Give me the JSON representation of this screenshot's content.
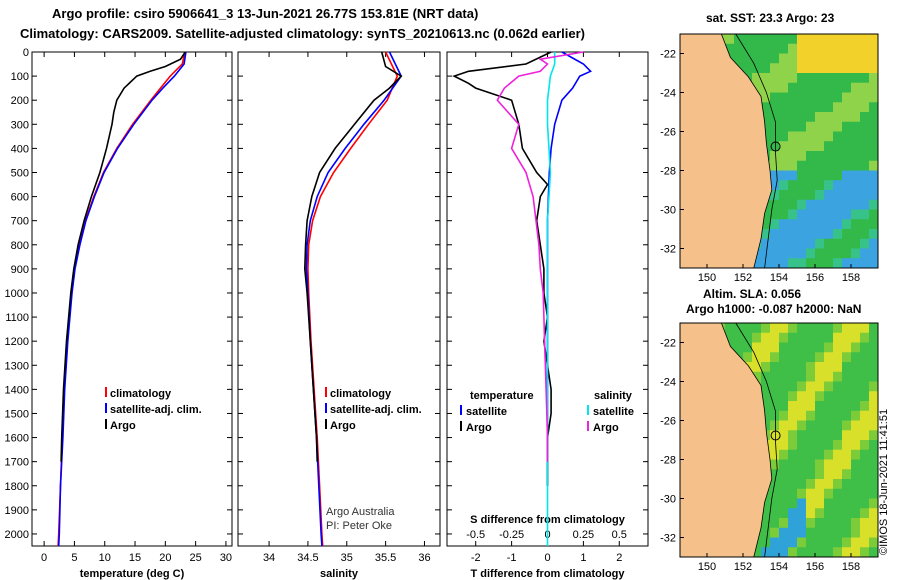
{
  "header": {
    "line1": "Argo profile: csiro 5906641_3 13-Jun-2021 26.77S 153.81E (NRT data)",
    "line2": "Climatology: CARS2009. Satellite-adjusted climatology: synTS_20210613.nc (0.062d earlier)"
  },
  "map_top_title": "sat. SST: 23.3 Argo: 23",
  "map_bottom_title_1": "Altim. SLA: 0.056",
  "map_bottom_title_2": "Argo h1000: -0.087 h2000: NaN",
  "stamp": "©IMOS 18-Jun-2021 11:41:51",
  "credit": {
    "line1": "Argo Australia",
    "line2": "PI: Peter Oke"
  },
  "colors": {
    "climatology": "#ff0000",
    "satellite": "#0000ff",
    "argo": "#000000",
    "sat_salinity": "#00e5ee",
    "argo_salinity": "#ee22dd",
    "land": "#f5c08a"
  },
  "legend_profiles": {
    "climatology": "climatology",
    "satellite": "satellite-adj. clim.",
    "argo": "Argo"
  },
  "legend_diff": {
    "temperature": "temperature",
    "salinity": "salinity",
    "satellite": "satellite",
    "argo": "Argo"
  },
  "chart_data": [
    {
      "type": "line",
      "title": "",
      "xlabel": "temperature (deg C)",
      "ylabel": "",
      "xlim": [
        -2,
        31
      ],
      "ylim": [
        2050,
        0
      ],
      "xticks": [
        "0",
        "5",
        "10",
        "15",
        "20",
        "25",
        "30"
      ],
      "yticks": [
        "0",
        "100",
        "200",
        "300",
        "400",
        "500",
        "600",
        "700",
        "800",
        "900",
        "1000",
        "1100",
        "1200",
        "1300",
        "1400",
        "1500",
        "1600",
        "1700",
        "1800",
        "1900",
        "2000"
      ],
      "series": [
        {
          "name": "climatology",
          "depth": [
            0,
            50,
            100,
            150,
            200,
            300,
            400,
            500,
            600,
            700,
            800,
            900,
            1000,
            1200,
            1400,
            1600,
            1800,
            2000,
            2050
          ],
          "values": [
            23.2,
            22.8,
            20.8,
            19.2,
            17.6,
            14.6,
            12.0,
            9.8,
            8.2,
            6.8,
            5.8,
            5.0,
            4.5,
            3.8,
            3.3,
            3.0,
            2.7,
            2.4,
            2.3
          ]
        },
        {
          "name": "satellite-adj. clim.",
          "depth": [
            0,
            50,
            100,
            150,
            200,
            300,
            400,
            500,
            600,
            700,
            800,
            900,
            1000,
            1200,
            1400,
            1600,
            1800,
            2000,
            2050
          ],
          "values": [
            23.4,
            23.1,
            21.5,
            19.6,
            17.8,
            14.8,
            12.1,
            9.9,
            8.3,
            6.9,
            5.9,
            5.1,
            4.6,
            3.9,
            3.4,
            3.1,
            2.7,
            2.5,
            2.4
          ]
        },
        {
          "name": "Argo",
          "depth": [
            0,
            30,
            60,
            80,
            100,
            150,
            200,
            250,
            300,
            400,
            500,
            600,
            700,
            800,
            900,
            1000,
            1200,
            1400,
            1600,
            1700
          ],
          "values": [
            23.3,
            22.5,
            20.0,
            17.5,
            15.3,
            13.2,
            12.0,
            11.5,
            11.2,
            10.3,
            9.2,
            7.8,
            6.6,
            5.6,
            4.9,
            4.4,
            3.7,
            3.2,
            2.9,
            2.8
          ]
        }
      ]
    },
    {
      "type": "line",
      "title": "",
      "xlabel": "salinity",
      "ylabel": "",
      "xlim": [
        33.6,
        36.2
      ],
      "ylim": [
        2050,
        0
      ],
      "xticks": [
        "34",
        "34.5",
        "35",
        "35.5",
        "36"
      ],
      "series": [
        {
          "name": "climatology",
          "depth": [
            0,
            100,
            200,
            300,
            400,
            500,
            600,
            700,
            800,
            900,
            1000,
            1200,
            1400,
            1600,
            1800,
            2000,
            2050
          ],
          "values": [
            35.5,
            35.65,
            35.52,
            35.28,
            35.05,
            34.83,
            34.66,
            34.56,
            34.51,
            34.5,
            34.51,
            34.54,
            34.58,
            34.62,
            34.65,
            34.68,
            34.69
          ]
        },
        {
          "name": "satellite-adj. clim.",
          "depth": [
            0,
            100,
            200,
            300,
            400,
            500,
            600,
            700,
            800,
            900,
            1000,
            1200,
            1400,
            1600,
            1800,
            2000,
            2050
          ],
          "values": [
            35.55,
            35.7,
            35.48,
            35.22,
            34.98,
            34.76,
            34.62,
            34.53,
            34.49,
            34.48,
            34.5,
            34.53,
            34.57,
            34.61,
            34.64,
            34.67,
            34.68
          ]
        },
        {
          "name": "Argo",
          "depth": [
            0,
            60,
            100,
            150,
            200,
            300,
            400,
            500,
            600,
            700,
            800,
            900,
            1000,
            1200,
            1400,
            1600,
            1700
          ],
          "values": [
            35.45,
            35.5,
            35.7,
            35.55,
            35.35,
            35.1,
            34.85,
            34.65,
            34.55,
            34.49,
            34.47,
            34.46,
            34.49,
            34.53,
            34.57,
            34.61,
            34.62
          ]
        }
      ]
    },
    {
      "type": "line",
      "title": "",
      "xlabel": "T difference from climatology",
      "xlabel2": "S difference from climatology",
      "ylabel": "",
      "xlim": [
        -2.8,
        2.8
      ],
      "ylim": [
        2050,
        0
      ],
      "xticks": [
        "-2",
        "-1",
        "0",
        "1",
        "2"
      ],
      "xticks_s": [
        "-0.5",
        "-0.25",
        "0",
        "0.25",
        "0.5"
      ],
      "xlim_s": [
        -0.7,
        0.7
      ],
      "series": [
        {
          "name": "temperature satellite",
          "depth": [
            0,
            50,
            80,
            100,
            150,
            200,
            300,
            400,
            500,
            700,
            900,
            1100,
            1300,
            1500,
            1700,
            1800
          ],
          "values": [
            0.4,
            1.0,
            1.2,
            0.9,
            0.7,
            0.4,
            0.2,
            0.1,
            0.05,
            0.0,
            0.0,
            0.0,
            0.0,
            0.0,
            0.0,
            0.0
          ]
        },
        {
          "name": "temperature Argo",
          "depth": [
            0,
            50,
            80,
            100,
            130,
            150,
            200,
            300,
            400,
            500,
            550,
            600,
            700,
            800,
            900,
            1000,
            1100,
            1200,
            1300,
            1400,
            1500,
            1600,
            1700,
            1800
          ],
          "values": [
            0.1,
            -0.6,
            -2.2,
            -2.6,
            -2.2,
            -2.0,
            -1.0,
            -0.8,
            -0.7,
            -0.3,
            0.0,
            -0.2,
            -0.3,
            -0.2,
            -0.1,
            -0.1,
            0.0,
            -0.1,
            0.0,
            0.1,
            0.1,
            0.0,
            0.0,
            0.0
          ]
        },
        {
          "name": "salinity satellite",
          "depth": [
            0,
            50,
            100,
            200,
            300,
            500,
            700,
            1000,
            1300,
            1600,
            1900,
            2050
          ],
          "values": [
            0.05,
            0.05,
            0.02,
            0.0,
            0.0,
            0.02,
            0.0,
            0.0,
            0.0,
            0.0,
            0.0,
            0.0
          ]
        },
        {
          "name": "salinity Argo",
          "depth": [
            0,
            30,
            50,
            80,
            100,
            150,
            200,
            300,
            400,
            500,
            600,
            700,
            800,
            900,
            1000,
            1200,
            1400,
            1600,
            1700
          ],
          "values": [
            0.25,
            -0.05,
            0.0,
            -0.05,
            -0.2,
            -0.3,
            -0.35,
            -0.2,
            -0.25,
            -0.15,
            -0.1,
            -0.08,
            -0.06,
            -0.05,
            -0.03,
            -0.02,
            -0.01,
            0.0,
            0.0
          ]
        }
      ]
    },
    {
      "type": "heatmap",
      "title": "sat. SST: 23.3 Argo: 23",
      "xticks": [
        "150",
        "152",
        "154",
        "156",
        "158"
      ],
      "yticks": [
        "-22",
        "-24",
        "-26",
        "-28",
        "-30",
        "-32"
      ],
      "xlim": [
        148.5,
        159.5
      ],
      "ylim": [
        -33,
        -21
      ],
      "marker": {
        "lon": 153.81,
        "lat": -26.77
      }
    },
    {
      "type": "heatmap",
      "title": "Altim. SLA: 0.056",
      "xticks": [
        "150",
        "152",
        "154",
        "156",
        "158"
      ],
      "yticks": [
        "-22",
        "-24",
        "-26",
        "-28",
        "-30",
        "-32"
      ],
      "xlim": [
        148.5,
        159.5
      ],
      "ylim": [
        -33,
        -21
      ],
      "marker": {
        "lon": 153.81,
        "lat": -26.77
      }
    }
  ]
}
